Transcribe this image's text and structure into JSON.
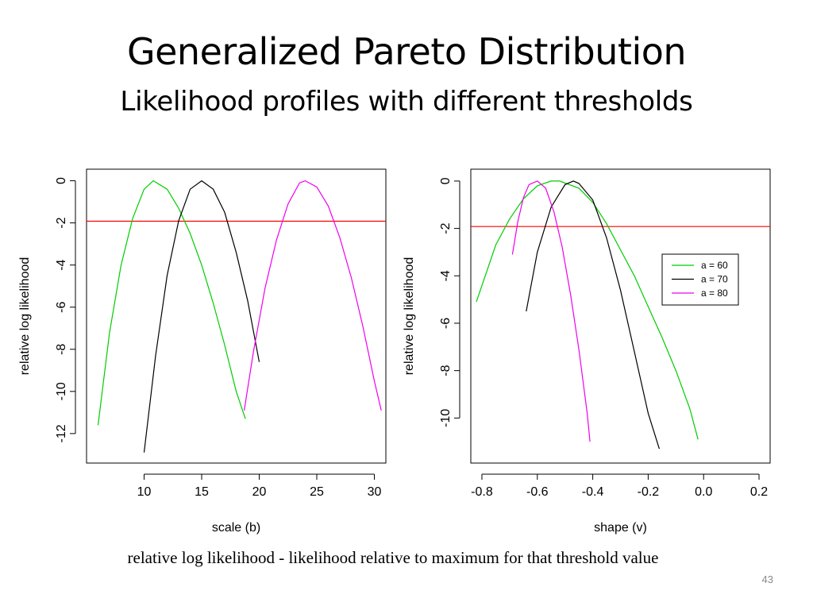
{
  "slide": {
    "title": "Generalized Pareto Distribution",
    "subtitle": "Likelihood profiles with different thresholds",
    "caption": "relative log likelihood - likelihood relative to maximum for that threshold value",
    "page_number": "43"
  },
  "colors": {
    "green": "#00cd00",
    "black": "#000000",
    "magenta": "#ee00ee",
    "red": "#ff0000"
  },
  "chart_data": [
    {
      "type": "line",
      "xlabel": "scale (b)",
      "ylabel": "relative log likelihood",
      "xlim": [
        5.0,
        31.0
      ],
      "ylim": [
        -13.4,
        0.55
      ],
      "xticks": [
        10,
        15,
        20,
        25,
        30
      ],
      "yticks": [
        0,
        -2,
        -4,
        -6,
        -8,
        -10,
        -12
      ],
      "grid": false,
      "legend": null,
      "hline": {
        "y": -1.92,
        "color": "#ff0000"
      },
      "series": [
        {
          "color": "#00cd00",
          "x": [
            6.0,
            7.0,
            8.0,
            9.0,
            10.0,
            10.8,
            12.0,
            13.0,
            14.0,
            15.0,
            16.0,
            17.0,
            18.0,
            18.8
          ],
          "y": [
            -11.6,
            -7.2,
            -4.0,
            -1.8,
            -0.4,
            0.0,
            -0.4,
            -1.3,
            -2.5,
            -4.0,
            -5.8,
            -7.8,
            -10.0,
            -11.3
          ]
        },
        {
          "color": "#000000",
          "x": [
            10.0,
            11.0,
            12.0,
            13.0,
            14.0,
            15.0,
            16.0,
            17.0,
            18.0,
            19.0,
            20.0
          ],
          "y": [
            -12.9,
            -8.3,
            -4.5,
            -1.9,
            -0.4,
            0.0,
            -0.4,
            -1.5,
            -3.4,
            -5.7,
            -8.6
          ]
        },
        {
          "color": "#ee00ee",
          "x": [
            18.7,
            19.5,
            20.5,
            21.5,
            22.5,
            23.5,
            24.0,
            25.0,
            26.0,
            27.0,
            28.0,
            29.0,
            30.0,
            30.6
          ],
          "y": [
            -10.9,
            -8.1,
            -5.1,
            -2.8,
            -1.1,
            -0.1,
            0.0,
            -0.3,
            -1.2,
            -2.7,
            -4.6,
            -6.9,
            -9.5,
            -10.9
          ]
        }
      ]
    },
    {
      "type": "line",
      "xlabel": "shape (v)",
      "ylabel": "relative log likelihood",
      "xlim": [
        -0.84,
        0.24
      ],
      "ylim": [
        -11.9,
        0.5
      ],
      "xticks": [
        -0.8,
        -0.6,
        -0.4,
        -0.2,
        0.0,
        0.2
      ],
      "xtick_labels": [
        "-0.8",
        "-0.6",
        "-0.4",
        "-0.2",
        "0.0",
        "0.2"
      ],
      "yticks": [
        0,
        -2,
        -4,
        -6,
        -8,
        -10
      ],
      "grid": false,
      "legend": {
        "position": "right",
        "entries": [
          {
            "label": "a = 60",
            "color": "#00cd00"
          },
          {
            "label": "a = 70",
            "color": "#000000"
          },
          {
            "label": "a = 80",
            "color": "#ee00ee"
          }
        ]
      },
      "hline": {
        "y": -1.92,
        "color": "#ff0000"
      },
      "series": [
        {
          "name": "a = 60",
          "color": "#00cd00",
          "x": [
            -0.82,
            -0.75,
            -0.7,
            -0.65,
            -0.6,
            -0.55,
            -0.52,
            -0.45,
            -0.4,
            -0.35,
            -0.3,
            -0.25,
            -0.2,
            -0.15,
            -0.1,
            -0.05,
            -0.02
          ],
          "y": [
            -5.1,
            -2.7,
            -1.6,
            -0.75,
            -0.2,
            0.0,
            0.0,
            -0.3,
            -0.9,
            -1.8,
            -2.9,
            -4.0,
            -5.3,
            -6.6,
            -8.0,
            -9.6,
            -10.9
          ]
        },
        {
          "name": "a = 70",
          "color": "#000000",
          "x": [
            -0.64,
            -0.6,
            -0.55,
            -0.5,
            -0.47,
            -0.45,
            -0.4,
            -0.35,
            -0.3,
            -0.25,
            -0.2,
            -0.16
          ],
          "y": [
            -5.5,
            -3.0,
            -1.1,
            -0.15,
            0.0,
            -0.1,
            -0.8,
            -2.4,
            -4.6,
            -7.2,
            -9.8,
            -11.3
          ]
        },
        {
          "name": "a = 80",
          "color": "#ee00ee",
          "x": [
            -0.69,
            -0.67,
            -0.65,
            -0.63,
            -0.6,
            -0.57,
            -0.54,
            -0.51,
            -0.48,
            -0.45,
            -0.42,
            -0.41
          ],
          "y": [
            -3.1,
            -1.7,
            -0.7,
            -0.15,
            0.0,
            -0.3,
            -1.3,
            -2.8,
            -4.8,
            -7.1,
            -9.8,
            -11.0
          ]
        }
      ]
    }
  ]
}
